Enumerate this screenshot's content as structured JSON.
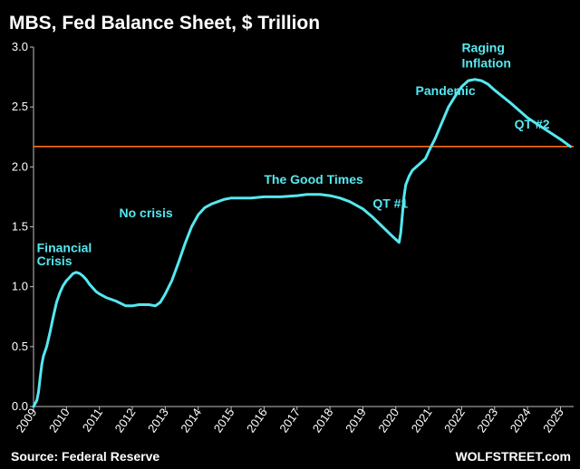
{
  "chart_data": {
    "type": "line",
    "title": "MBS, Fed Balance Sheet, $ Trillion",
    "xlabel": "",
    "ylabel": "",
    "xlim": [
      2009,
      2025.4
    ],
    "ylim": [
      0,
      3.0
    ],
    "y_ticks": [
      "0.0",
      "0.5",
      "1.0",
      "1.5",
      "2.0",
      "2.5",
      "3.0"
    ],
    "x_ticks": [
      "2009",
      "2010",
      "2011",
      "2012",
      "2013",
      "2014",
      "2015",
      "2016",
      "2017",
      "2018",
      "2019",
      "2020",
      "2021",
      "2022",
      "2023",
      "2024",
      "2025"
    ],
    "grid": false,
    "legend": "none",
    "reference_line": {
      "y": 2.17,
      "color": "#ff6a1a"
    },
    "series": [
      {
        "color": "#55e8f0",
        "x": [
          2009.0,
          2009.1,
          2009.15,
          2009.2,
          2009.25,
          2009.3,
          2009.4,
          2009.5,
          2009.6,
          2009.7,
          2009.8,
          2009.9,
          2010.0,
          2010.1,
          2010.2,
          2010.3,
          2010.4,
          2010.5,
          2010.6,
          2010.7,
          2010.8,
          2010.9,
          2011.0,
          2011.2,
          2011.5,
          2011.8,
          2012.0,
          2012.2,
          2012.5,
          2012.7,
          2012.85,
          2013.0,
          2013.2,
          2013.4,
          2013.6,
          2013.8,
          2014.0,
          2014.2,
          2014.4,
          2014.6,
          2014.8,
          2015.0,
          2015.3,
          2015.6,
          2016.0,
          2016.5,
          2017.0,
          2017.3,
          2017.7,
          2018.0,
          2018.3,
          2018.6,
          2019.0,
          2019.3,
          2019.6,
          2019.9,
          2020.1,
          2020.15,
          2020.2,
          2020.25,
          2020.3,
          2020.4,
          2020.5,
          2020.7,
          2020.9,
          2021.0,
          2021.2,
          2021.4,
          2021.6,
          2021.8,
          2022.0,
          2022.2,
          2022.4,
          2022.6,
          2022.8,
          2023.0,
          2023.5,
          2024.0,
          2024.5,
          2025.0,
          2025.3
        ],
        "values": [
          0.0,
          0.05,
          0.12,
          0.24,
          0.35,
          0.42,
          0.5,
          0.62,
          0.75,
          0.87,
          0.95,
          1.01,
          1.05,
          1.08,
          1.11,
          1.12,
          1.11,
          1.09,
          1.06,
          1.02,
          0.99,
          0.96,
          0.94,
          0.91,
          0.88,
          0.84,
          0.84,
          0.85,
          0.85,
          0.84,
          0.87,
          0.94,
          1.05,
          1.2,
          1.36,
          1.5,
          1.6,
          1.66,
          1.69,
          1.71,
          1.73,
          1.74,
          1.74,
          1.74,
          1.75,
          1.75,
          1.76,
          1.77,
          1.77,
          1.76,
          1.74,
          1.71,
          1.65,
          1.58,
          1.5,
          1.42,
          1.37,
          1.45,
          1.6,
          1.75,
          1.85,
          1.92,
          1.97,
          2.02,
          2.07,
          2.13,
          2.24,
          2.37,
          2.5,
          2.59,
          2.67,
          2.72,
          2.73,
          2.72,
          2.69,
          2.64,
          2.53,
          2.41,
          2.32,
          2.23,
          2.17
        ]
      }
    ],
    "annotations": [
      {
        "id": "financial-crisis-line-1",
        "text": "Financial",
        "x": 2009.1,
        "y": 1.29
      },
      {
        "id": "financial-crisis-line-2",
        "text": "Crisis",
        "x": 2009.1,
        "y": 1.18
      },
      {
        "id": "no-crisis",
        "text": "No crisis",
        "x": 2011.6,
        "y": 1.58
      },
      {
        "id": "good-times",
        "text": "The Good Times",
        "x": 2016.0,
        "y": 1.86
      },
      {
        "id": "qt-1",
        "text": "QT #1",
        "x": 2019.3,
        "y": 1.66
      },
      {
        "id": "pandemic",
        "text": "Pandemic",
        "x": 2020.6,
        "y": 2.6
      },
      {
        "id": "raging-line-1",
        "text": "Raging",
        "x": 2022.0,
        "y": 2.96
      },
      {
        "id": "raging-line-2",
        "text": "Inflation",
        "x": 2022.0,
        "y": 2.83
      },
      {
        "id": "qt-2",
        "text": "QT #2",
        "x": 2023.6,
        "y": 2.32
      }
    ]
  },
  "footer": {
    "source": "Source: Federal Reserve",
    "brand": "WOLFSTREET.com"
  }
}
